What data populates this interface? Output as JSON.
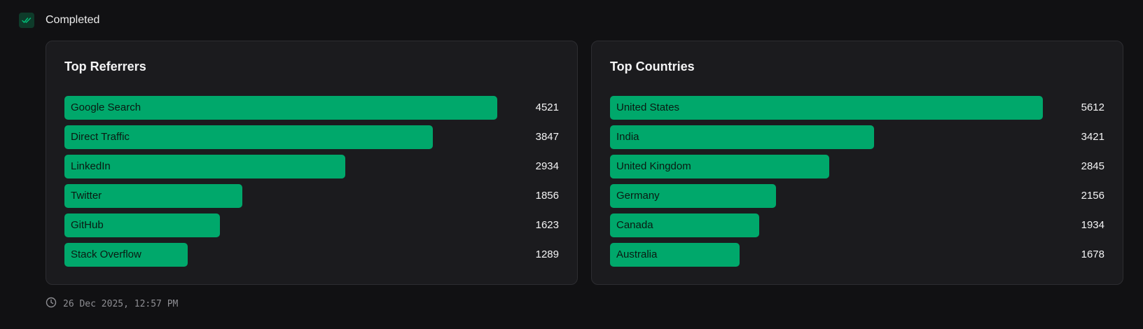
{
  "status": {
    "label": "Completed",
    "icon": "double-check-icon",
    "accent": "#00a86b"
  },
  "timestamp": {
    "text": "26 Dec 2025, 12:57 PM",
    "icon": "clock-icon"
  },
  "colors": {
    "bar": "#00a86b",
    "background": "#111113",
    "card": "#1b1b1e"
  },
  "chart_data": [
    {
      "type": "bar",
      "orientation": "horizontal",
      "title": "Top Referrers",
      "categories": [
        "Google Search",
        "Direct Traffic",
        "LinkedIn",
        "Twitter",
        "GitHub",
        "Stack Overflow"
      ],
      "values": [
        4521,
        3847,
        2934,
        1856,
        1623,
        1289
      ],
      "grid": false,
      "legend": "none"
    },
    {
      "type": "bar",
      "orientation": "horizontal",
      "title": "Top Countries",
      "categories": [
        "United States",
        "India",
        "United Kingdom",
        "Germany",
        "Canada",
        "Australia"
      ],
      "values": [
        5612,
        3421,
        2845,
        2156,
        1934,
        1678
      ],
      "grid": false,
      "legend": "none"
    }
  ]
}
